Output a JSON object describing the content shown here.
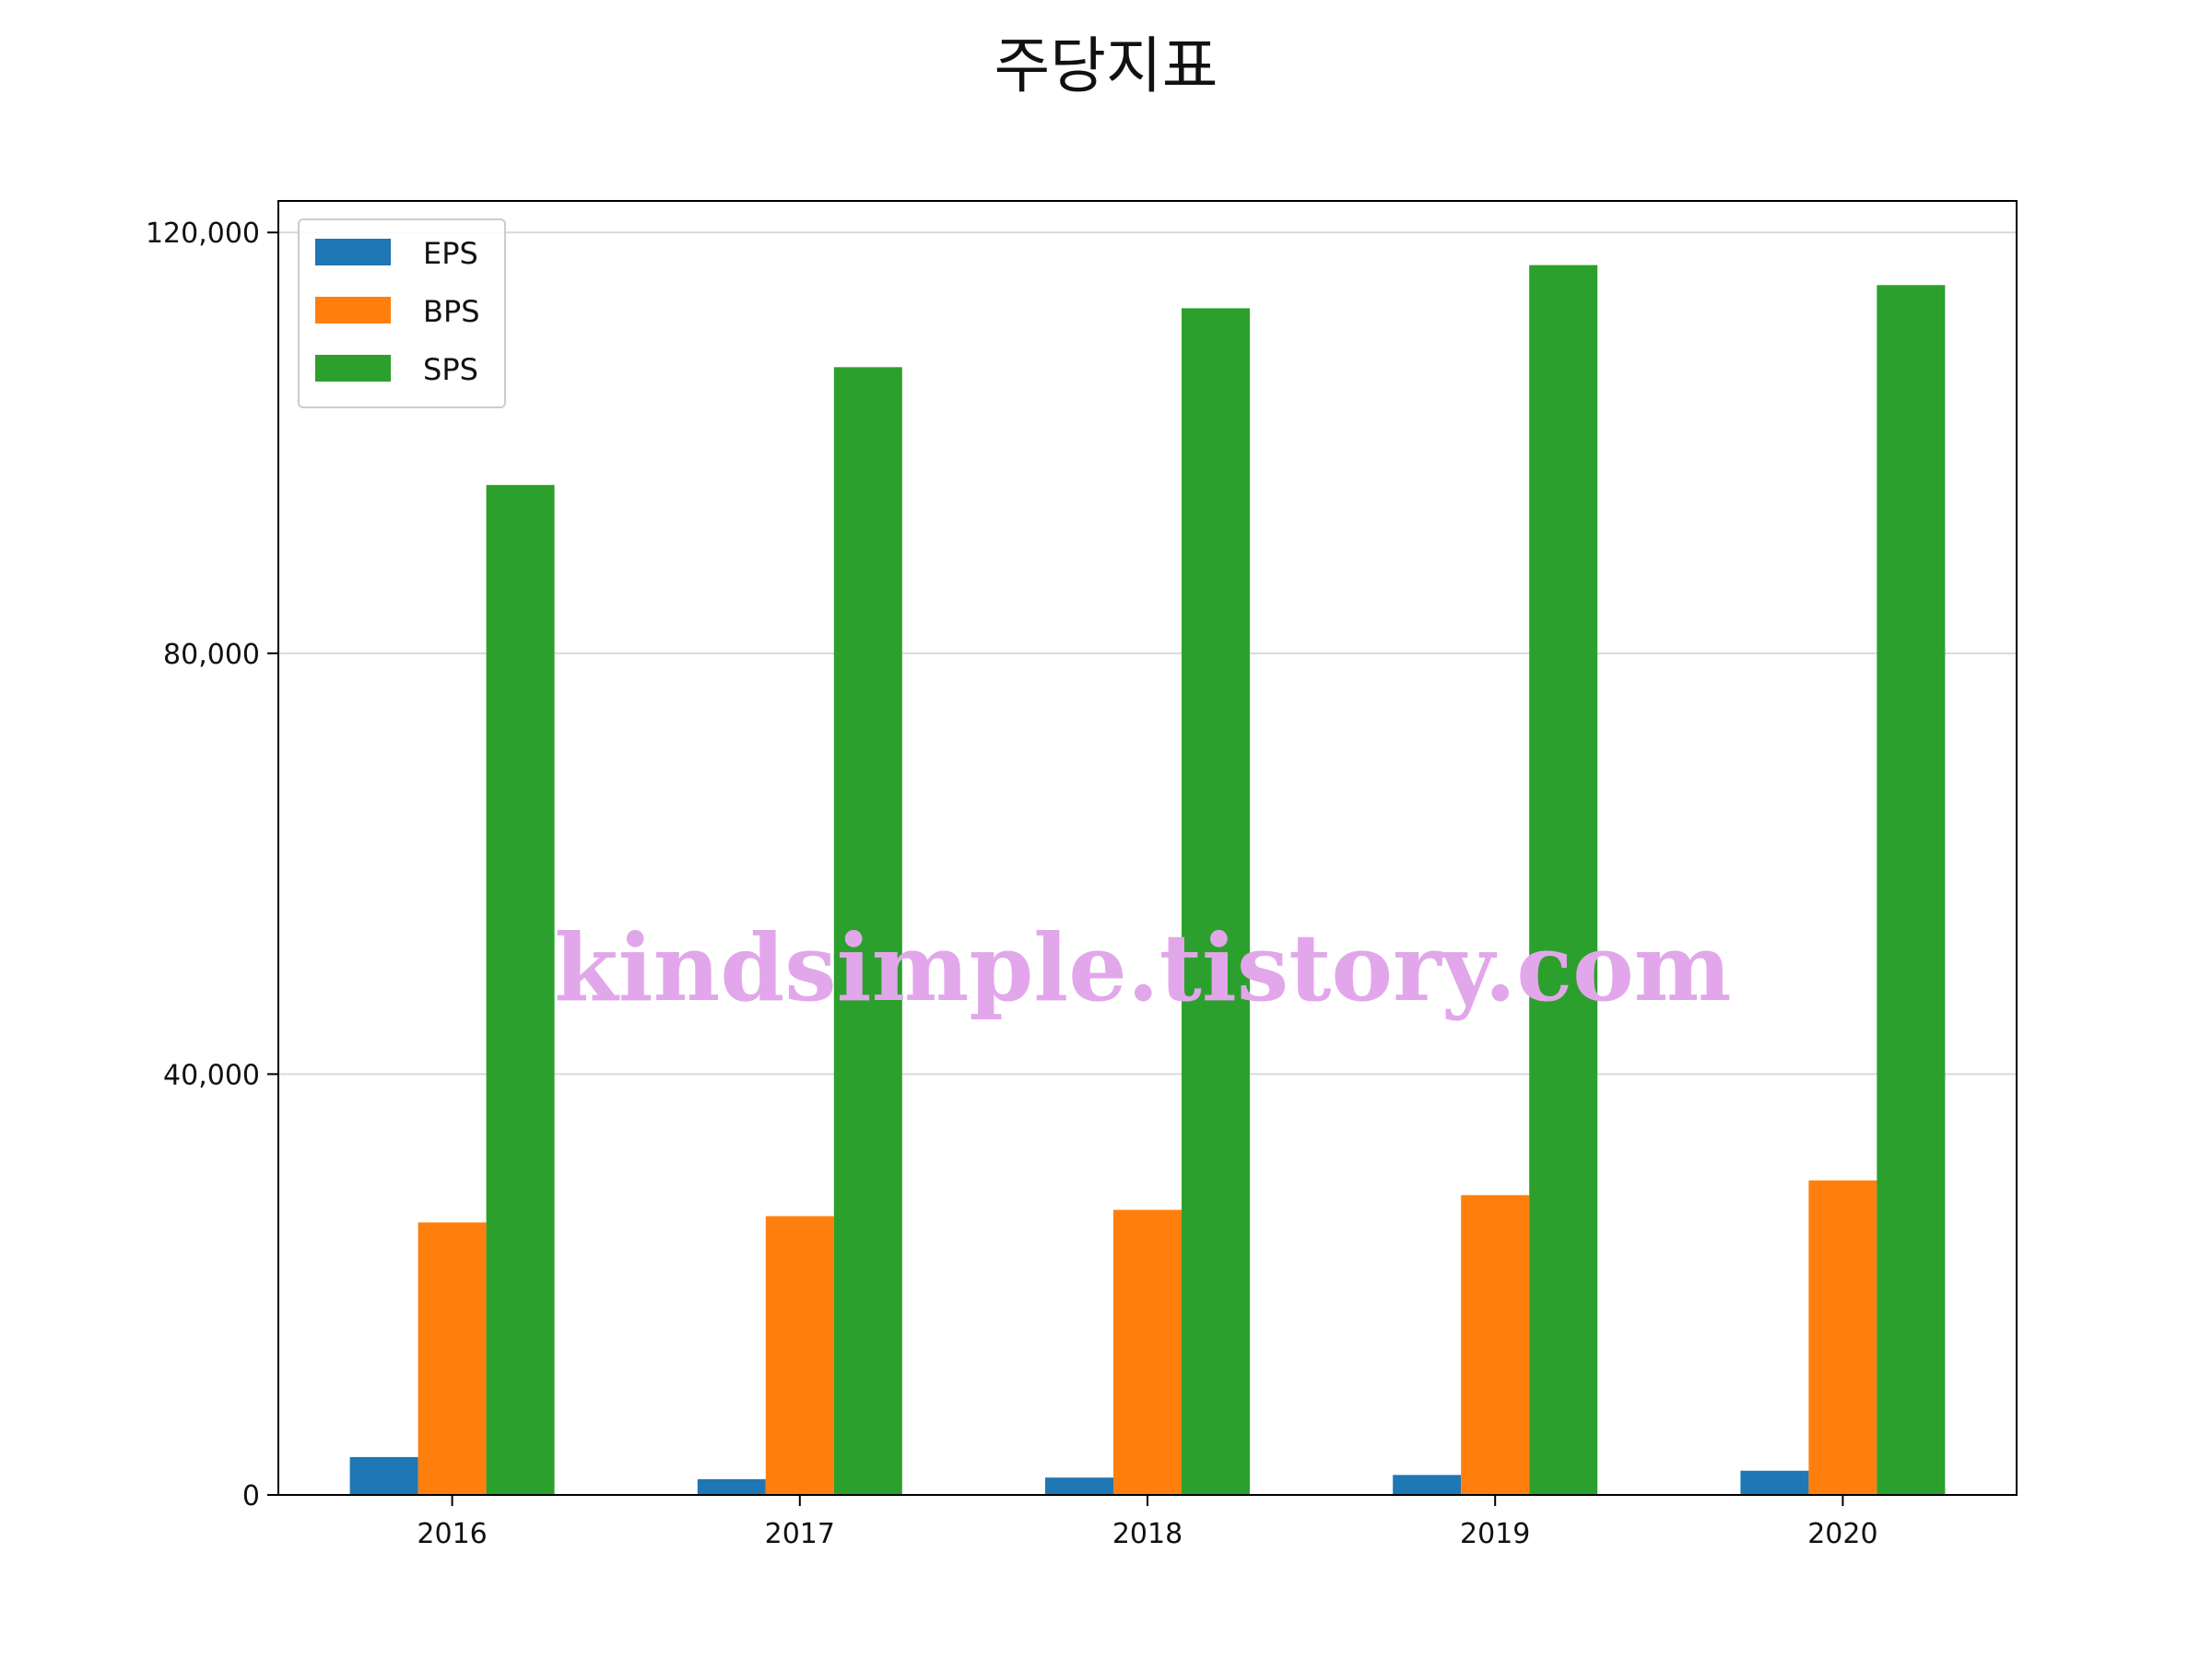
{
  "chart_data": {
    "type": "bar",
    "title": "주당지표",
    "xlabel": "",
    "ylabel": "",
    "categories": [
      "2016",
      "2017",
      "2018",
      "2019",
      "2020"
    ],
    "series": [
      {
        "name": "EPS",
        "color": "#1f77b4",
        "values": [
          3600,
          1500,
          1650,
          1900,
          2300
        ]
      },
      {
        "name": "BPS",
        "color": "#ff7f0e",
        "values": [
          25900,
          26500,
          27100,
          28500,
          29900
        ]
      },
      {
        "name": "SPS",
        "color": "#2ca02c",
        "values": [
          96000,
          107200,
          112800,
          116900,
          115000
        ]
      }
    ],
    "ylim": [
      0,
      123000
    ],
    "yticks": [
      0,
      40000,
      80000,
      120000
    ],
    "ytick_labels": [
      "0",
      "40,000",
      "80,000",
      "120,000"
    ],
    "grid": "horizontal",
    "legend_position": "upper-left",
    "watermark": "kindsimple.tistory.com"
  }
}
